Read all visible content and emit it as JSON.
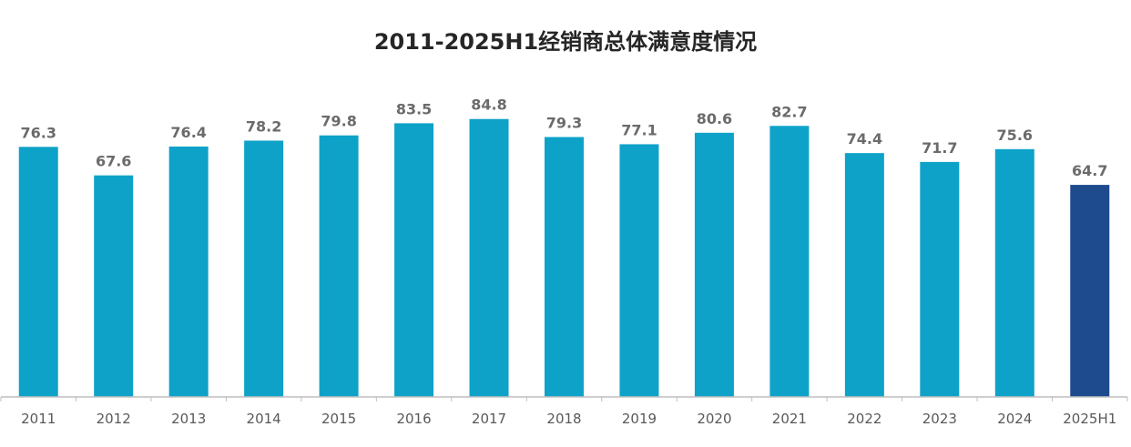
{
  "chart_data": {
    "type": "bar",
    "title": "2011-2025H1经销商总体满意度情况",
    "xlabel": "",
    "ylabel": "",
    "ylim": [
      0,
      100
    ],
    "grid": false,
    "legend": "none",
    "categories": [
      "2011",
      "2012",
      "2013",
      "2014",
      "2015",
      "2016",
      "2017",
      "2018",
      "2019",
      "2020",
      "2021",
      "2022",
      "2023",
      "2024",
      "2025H1"
    ],
    "series": [
      {
        "values": [
          76.3,
          67.6,
          76.4,
          78.2,
          79.8,
          83.5,
          84.8,
          79.3,
          77.1,
          80.6,
          82.7,
          74.4,
          71.7,
          75.6,
          64.7
        ]
      }
    ],
    "colors": {
      "bar": "#0ea2c9",
      "highlight_bar": "#1e4a8e",
      "axis": "#bfbfbf",
      "value_label": "#6b6b6b",
      "tick_label": "#595959",
      "title": "#262626"
    },
    "highlight_category": "2025H1"
  }
}
